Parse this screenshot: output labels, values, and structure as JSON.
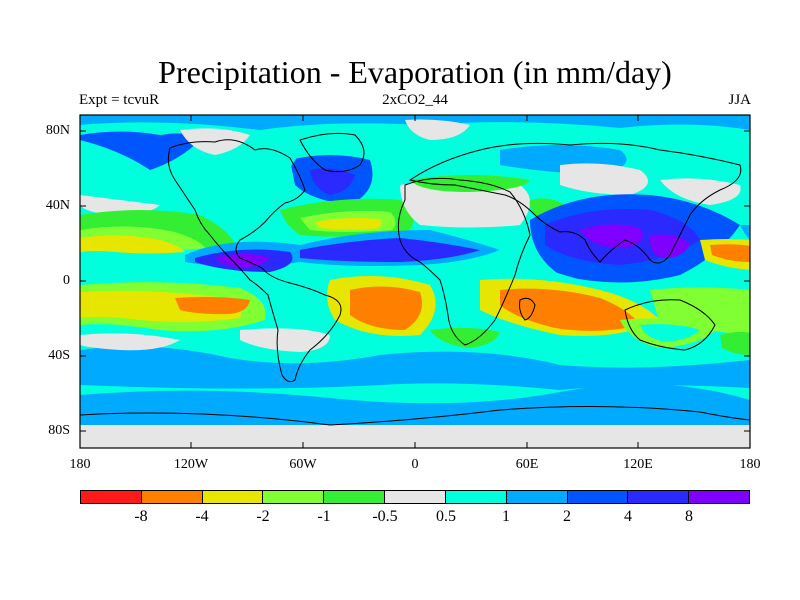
{
  "title": "Precipitation - Evaporation (in mm/day)",
  "subtitle_left": "Expt = tcvuR",
  "subtitle_center": "2xCO2_44",
  "subtitle_right": "JJA",
  "y_ticks": [
    "80N",
    "40N",
    "0",
    "40S",
    "80S"
  ],
  "x_ticks": [
    "180",
    "120W",
    "60W",
    "0",
    "60E",
    "120E",
    "180"
  ],
  "colorbar_labels": [
    "-8",
    "-4",
    "-2",
    "-1",
    "-0.5",
    "0.5",
    "1",
    "2",
    "4",
    "8"
  ],
  "colorbar_colors": [
    "#ff1a1a",
    "#ff8000",
    "#e6e600",
    "#80ff33",
    "#33ee33",
    "#e6e6e6",
    "#00ffdd",
    "#00aaff",
    "#0055ff",
    "#2a2aff",
    "#8000ff"
  ],
  "map_colors": {
    "neutral": "#e6e6e6",
    "cyan": "#00ffdd",
    "light_blue": "#00aaff",
    "blue": "#0055ff",
    "dark_blue": "#2a2aff",
    "violet": "#8000ff",
    "green": "#33ee33",
    "light_green": "#80ff33",
    "yellow": "#e6e600",
    "orange": "#ff8000"
  }
}
